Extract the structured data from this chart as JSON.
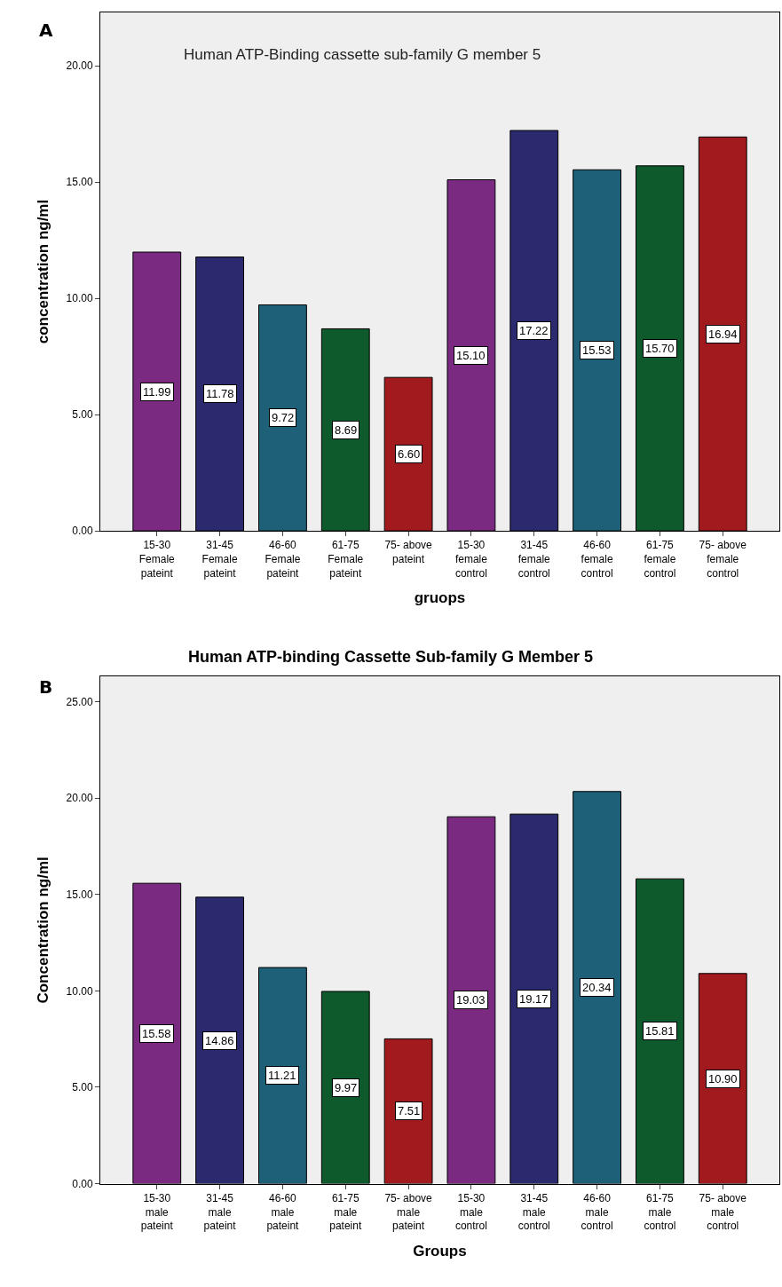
{
  "chart_data": [
    {
      "type": "bar",
      "title": "Human ATP-Binding cassette sub-family G member 5",
      "xlabel": "gruops",
      "ylabel": "concentration ng/ml",
      "annotations": [
        "A"
      ],
      "categories": [
        "15-30\nFemale\npateint",
        "31-45\nFemale\npateint",
        "46-60\nFemale\npateint",
        "61-75\nFemale\npateint",
        "75- above\npateint",
        "15-30\nfemale\ncontrol",
        "31-45\nfemale\ncontrol",
        "46-60\nfemale\ncontrol",
        "61-75\nfemale\ncontrol",
        "75- above\nfemale\ncontrol"
      ],
      "values": [
        11.99,
        11.78,
        9.72,
        8.69,
        6.6,
        15.1,
        17.22,
        15.53,
        15.7,
        16.94
      ],
      "colors": [
        "#7b2a82",
        "#2b2a6e",
        "#1e6078",
        "#0f5a2d",
        "#a01a1e",
        "#7b2a82",
        "#2b2a6e",
        "#1e6078",
        "#0f5a2d",
        "#a01a1e"
      ],
      "value_labels": [
        "11.99",
        "11.78",
        "9.72",
        "8.69",
        "6.60",
        "15.10",
        "17.22",
        "15.53",
        "15.70",
        "16.94"
      ],
      "ylim": [
        0,
        22.3
      ],
      "yticks": [
        {
          "value": 0,
          "label": "0.00"
        },
        {
          "value": 5,
          "label": "5.00"
        },
        {
          "value": 10,
          "label": "10.00"
        },
        {
          "value": 15,
          "label": "15.00"
        },
        {
          "value": 20,
          "label": "20.00"
        }
      ]
    },
    {
      "type": "bar",
      "title": "Human ATP-binding Cassette Sub-family G Member 5",
      "xlabel": "Groups",
      "ylabel": "Concentration ng/ml",
      "annotations": [
        "B"
      ],
      "categories": [
        "15-30\nmale\npateint",
        "31-45\nmale\npateint",
        "46-60\nmale\npateint",
        "61-75\nmale\npateint",
        "75- above\nmale\npateint",
        "15-30\nmale\ncontrol",
        "31-45\nmale\ncontrol",
        "46-60\nmale\ncontrol",
        "61-75\nmale\ncontrol",
        "75- above\nmale\ncontrol"
      ],
      "values": [
        15.58,
        14.86,
        11.21,
        9.97,
        7.51,
        19.03,
        19.17,
        20.34,
        15.81,
        10.9
      ],
      "colors": [
        "#7b2a82",
        "#2b2a6e",
        "#1e6078",
        "#0f5a2d",
        "#a01a1e",
        "#7b2a82",
        "#2b2a6e",
        "#1e6078",
        "#0f5a2d",
        "#a01a1e"
      ],
      "value_labels": [
        "15.58",
        "14.86",
        "11.21",
        "9.97",
        "7.51",
        "19.03",
        "19.17",
        "20.34",
        "15.81",
        "10.90"
      ],
      "ylim": [
        0,
        26.3
      ],
      "yticks": [
        {
          "value": 0,
          "label": "0.00"
        },
        {
          "value": 5,
          "label": "5.00"
        },
        {
          "value": 10,
          "label": "10.00"
        },
        {
          "value": 15,
          "label": "15.00"
        },
        {
          "value": 20,
          "label": "20.00"
        },
        {
          "value": 25,
          "label": "25.00"
        }
      ]
    }
  ]
}
